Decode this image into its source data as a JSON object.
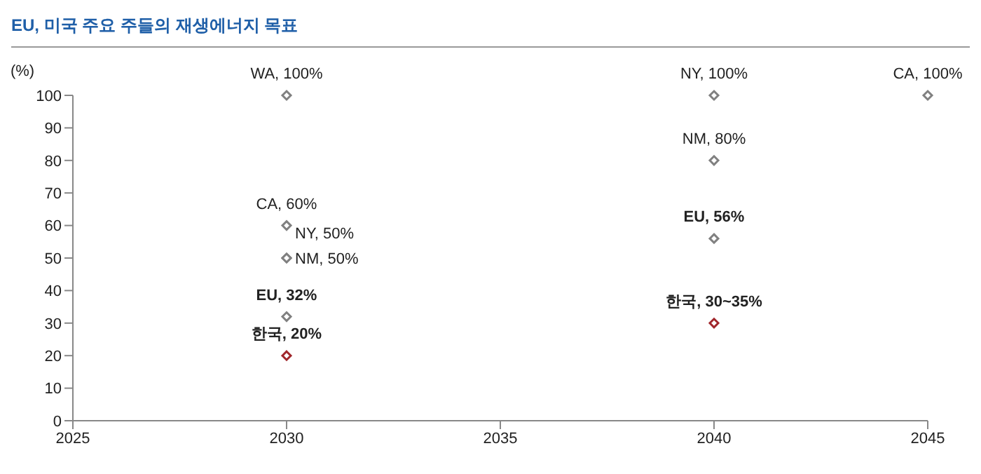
{
  "chart_data": {
    "type": "scatter",
    "title": "EU, 미국 주요 주들의 재생에너지 목표",
    "ylabel": "(%)",
    "marker": "diamond",
    "xlim": [
      2025,
      2045
    ],
    "xticks": [
      2025,
      2030,
      2035,
      2040,
      2045
    ],
    "ylim": [
      0,
      100
    ],
    "yticks": [
      0,
      10,
      20,
      30,
      40,
      50,
      60,
      70,
      80,
      90,
      100
    ],
    "series": [
      {
        "color": "#808080",
        "x": [
          2030,
          2030,
          2030,
          2030,
          2040,
          2040,
          2045
        ],
        "values": [
          100,
          60,
          50,
          50,
          100,
          80,
          100
        ],
        "value_labels": [
          "WA, 100%",
          "CA, 60%",
          "NY, 50%",
          "NM, 50%",
          "NY, 100%",
          "NM, 80%",
          "CA, 100%"
        ]
      },
      {
        "color": "#808080",
        "x": [
          2030,
          2040
        ],
        "values": [
          32,
          56
        ],
        "value_labels": [
          "EU, 32%",
          "EU, 56%"
        ]
      },
      {
        "color": "#a0262b",
        "x": [
          2030,
          2040
        ],
        "values": [
          20,
          30
        ],
        "value_labels": [
          "한국, 20%",
          "한국, 30~35%"
        ]
      }
    ]
  }
}
